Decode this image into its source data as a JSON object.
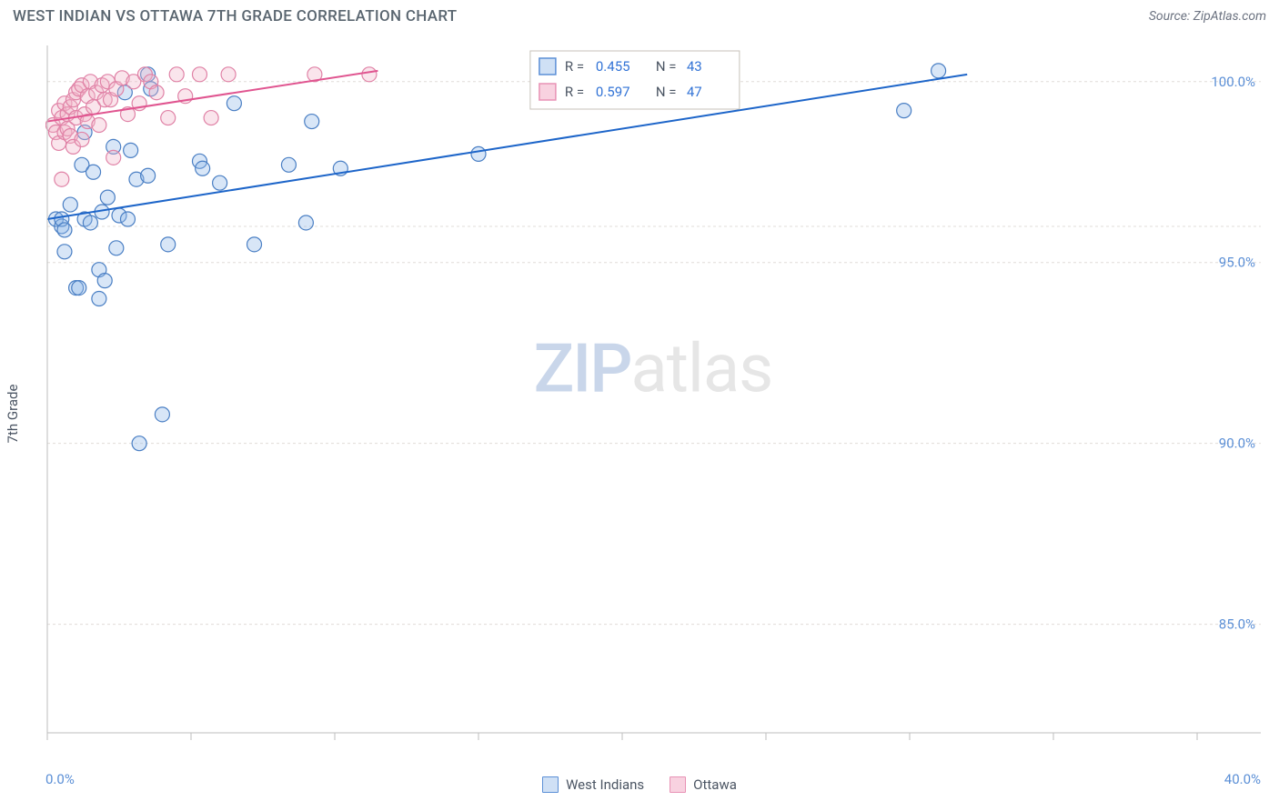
{
  "header": {
    "title": "WEST INDIAN VS OTTAWA 7TH GRADE CORRELATION CHART",
    "source": "Source: ZipAtlas.com"
  },
  "chart": {
    "type": "scatter",
    "ylabel": "7th Grade",
    "xlim": [
      0,
      40
    ],
    "ylim": [
      82,
      101
    ],
    "xlabel_min": "0.0%",
    "xlabel_max": "40.0%",
    "xticks": [
      0,
      5,
      10,
      15,
      20,
      25,
      30,
      35,
      40
    ],
    "yticks": [
      {
        "v": 85,
        "label": "85.0%"
      },
      {
        "v": 90,
        "label": "90.0%"
      },
      {
        "v": 95,
        "label": "95.0%"
      },
      {
        "v": 100,
        "label": "100.0%"
      }
    ],
    "y_gridlines": [
      85,
      90,
      95,
      96,
      100
    ],
    "grid_color": "#e0dcd8",
    "axis_color": "#bdbdbd",
    "marker_radius": 8,
    "marker_stroke_width": 1.2,
    "marker_fill_opacity": 0.35,
    "trendline_width": 2,
    "ytick_fontsize": 15,
    "ytick_color": "#5b8fd6",
    "series": [
      {
        "name": "West Indians",
        "color_fill": "#8fb7e8",
        "color_stroke": "#4a7fc4",
        "trend_color": "#1d65c9",
        "trendline": {
          "x1": 0,
          "y1": 96.2,
          "x2": 32,
          "y2": 100.2
        },
        "R": 0.455,
        "N": 43,
        "points": [
          [
            0.3,
            96.2
          ],
          [
            0.5,
            96.0
          ],
          [
            0.5,
            96.2
          ],
          [
            0.6,
            95.9
          ],
          [
            0.6,
            95.3
          ],
          [
            0.8,
            96.6
          ],
          [
            1.0,
            94.3
          ],
          [
            1.1,
            94.3
          ],
          [
            1.2,
            97.7
          ],
          [
            1.3,
            96.2
          ],
          [
            1.3,
            98.6
          ],
          [
            1.5,
            96.1
          ],
          [
            1.6,
            97.5
          ],
          [
            1.8,
            94.0
          ],
          [
            1.8,
            94.8
          ],
          [
            1.9,
            96.4
          ],
          [
            2.0,
            94.5
          ],
          [
            2.1,
            96.8
          ],
          [
            2.3,
            98.2
          ],
          [
            2.4,
            95.4
          ],
          [
            2.5,
            96.3
          ],
          [
            2.7,
            99.7
          ],
          [
            2.8,
            96.2
          ],
          [
            2.9,
            98.1
          ],
          [
            3.1,
            97.3
          ],
          [
            3.2,
            90.0
          ],
          [
            3.5,
            97.4
          ],
          [
            3.5,
            100.2
          ],
          [
            3.6,
            99.8
          ],
          [
            4.0,
            90.8
          ],
          [
            4.2,
            95.5
          ],
          [
            5.3,
            97.8
          ],
          [
            5.4,
            97.6
          ],
          [
            6.0,
            97.2
          ],
          [
            6.5,
            99.4
          ],
          [
            7.2,
            95.5
          ],
          [
            8.4,
            97.7
          ],
          [
            9.0,
            96.1
          ],
          [
            9.2,
            98.9
          ],
          [
            10.2,
            97.6
          ],
          [
            15.0,
            98.0
          ],
          [
            29.8,
            99.2
          ],
          [
            31.0,
            100.3
          ]
        ]
      },
      {
        "name": "Ottawa",
        "color_fill": "#f2b5c9",
        "color_stroke": "#e082a6",
        "trend_color": "#e05590",
        "trendline": {
          "x1": 0,
          "y1": 98.9,
          "x2": 11.5,
          "y2": 100.3
        },
        "R": 0.597,
        "N": 47,
        "points": [
          [
            0.2,
            98.8
          ],
          [
            0.3,
            98.6
          ],
          [
            0.4,
            99.2
          ],
          [
            0.4,
            98.3
          ],
          [
            0.5,
            97.3
          ],
          [
            0.5,
            99.0
          ],
          [
            0.6,
            98.6
          ],
          [
            0.6,
            99.4
          ],
          [
            0.7,
            98.7
          ],
          [
            0.7,
            99.1
          ],
          [
            0.8,
            99.3
          ],
          [
            0.8,
            98.5
          ],
          [
            0.9,
            99.5
          ],
          [
            0.9,
            98.2
          ],
          [
            1.0,
            99.7
          ],
          [
            1.0,
            99.0
          ],
          [
            1.1,
            99.8
          ],
          [
            1.2,
            98.4
          ],
          [
            1.2,
            99.9
          ],
          [
            1.3,
            99.1
          ],
          [
            1.4,
            99.6
          ],
          [
            1.4,
            98.9
          ],
          [
            1.5,
            100.0
          ],
          [
            1.6,
            99.3
          ],
          [
            1.7,
            99.7
          ],
          [
            1.8,
            98.8
          ],
          [
            1.9,
            99.9
          ],
          [
            2.0,
            99.5
          ],
          [
            2.1,
            100.0
          ],
          [
            2.2,
            99.5
          ],
          [
            2.3,
            97.9
          ],
          [
            2.4,
            99.8
          ],
          [
            2.6,
            100.1
          ],
          [
            2.8,
            99.1
          ],
          [
            3.0,
            100.0
          ],
          [
            3.2,
            99.4
          ],
          [
            3.4,
            100.2
          ],
          [
            3.6,
            100.0
          ],
          [
            3.8,
            99.7
          ],
          [
            4.2,
            99.0
          ],
          [
            4.5,
            100.2
          ],
          [
            4.8,
            99.6
          ],
          [
            5.3,
            100.2
          ],
          [
            5.7,
            99.0
          ],
          [
            6.3,
            100.2
          ],
          [
            9.3,
            100.2
          ],
          [
            11.2,
            100.2
          ]
        ]
      }
    ]
  },
  "legend_box": {
    "border_color": "#c7c2b9",
    "bg": "#ffffff",
    "text_color_label": "#4b5563",
    "text_color_value": "#3273d6",
    "fontsize": 15,
    "rows": [
      {
        "swatch_fill": "#cfe0f5",
        "swatch_stroke": "#5b8fd6",
        "R": "0.455",
        "N": "43"
      },
      {
        "swatch_fill": "#f8d2e0",
        "swatch_stroke": "#e892b5",
        "R": "0.597",
        "N": "47"
      }
    ]
  },
  "bottom_legend": [
    {
      "label": "West Indians",
      "fill": "#cfe0f5",
      "stroke": "#5b8fd6"
    },
    {
      "label": "Ottawa",
      "fill": "#f8d2e0",
      "stroke": "#e892b5"
    }
  ],
  "watermark": {
    "zip": "ZIP",
    "atlas": "atlas"
  }
}
